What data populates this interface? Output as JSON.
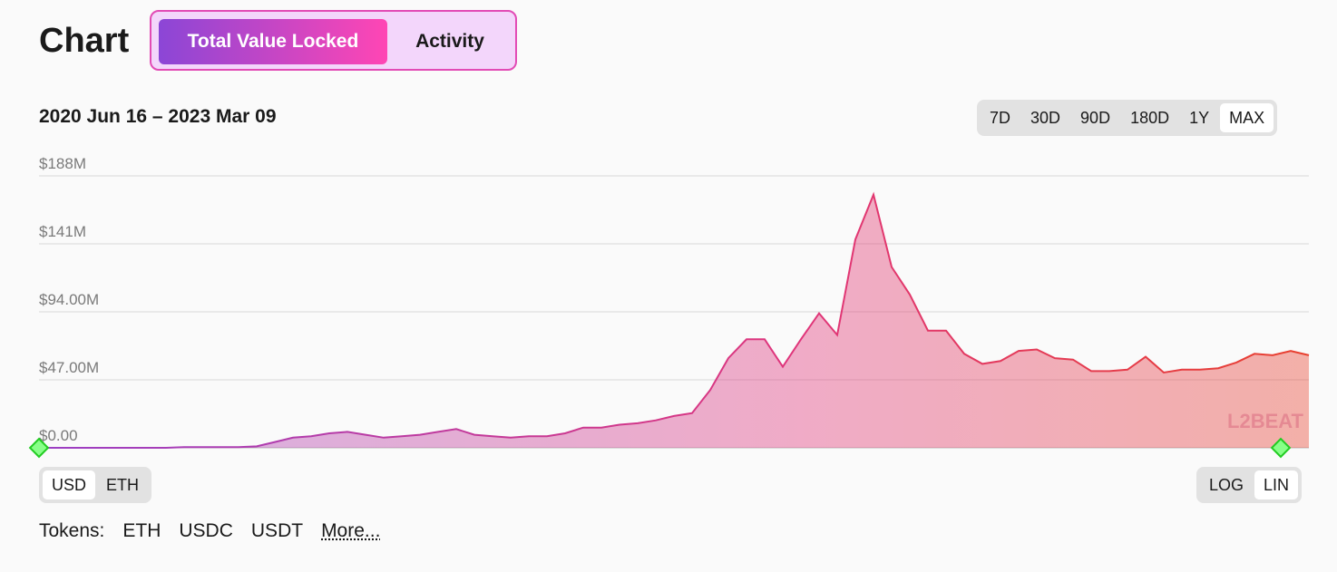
{
  "header": {
    "title": "Chart",
    "tabs": [
      "Total Value Locked",
      "Activity"
    ]
  },
  "date_range": "2020 Jun 16 – 2023 Mar 09",
  "range_buttons": [
    "7D",
    "30D",
    "90D",
    "180D",
    "1Y",
    "MAX"
  ],
  "unit_buttons": [
    "USD",
    "ETH"
  ],
  "scale_buttons": [
    "LOG",
    "LIN"
  ],
  "tokens": {
    "label": "Tokens:",
    "items": [
      "ETH",
      "USDC",
      "USDT"
    ],
    "more": "More..."
  },
  "watermark": "L2BEAT",
  "chart_data": {
    "type": "area",
    "values": [
      0,
      0,
      0,
      0,
      0,
      0,
      0,
      0,
      500000,
      500000,
      500000,
      500000,
      1000000,
      4000000,
      7000000,
      8000000,
      10000000,
      11000000,
      9000000,
      7000000,
      8000000,
      9000000,
      11000000,
      13000000,
      9000000,
      8000000,
      7000000,
      8000000,
      8000000,
      10000000,
      14000000,
      14000000,
      16000000,
      17000000,
      19000000,
      22000000,
      24000000,
      40000000,
      62000000,
      75000000,
      75000000,
      56000000,
      75000000,
      93000000,
      78000000,
      144000000,
      175000000,
      125000000,
      106000000,
      81000000,
      81000000,
      65000000,
      58000000,
      60000000,
      67000000,
      68000000,
      62000000,
      61000000,
      53000000,
      53000000,
      54000000,
      63000000,
      52000000,
      54000000,
      54000000,
      55000000,
      59000000,
      65000000,
      64000000,
      67000000,
      64000000
    ],
    "ylim": [
      0,
      188000000
    ],
    "yticks": [
      {
        "value": 0,
        "label": "$0.00"
      },
      {
        "value": 47000000,
        "label": "$47.00M"
      },
      {
        "value": 94000000,
        "label": "$94.00M"
      },
      {
        "value": 141000000,
        "label": "$141M"
      },
      {
        "value": 188000000,
        "label": "$188M"
      }
    ],
    "grid": true,
    "colors": [
      "#9b3fc4",
      "#e0357a",
      "#e8402e"
    ]
  }
}
